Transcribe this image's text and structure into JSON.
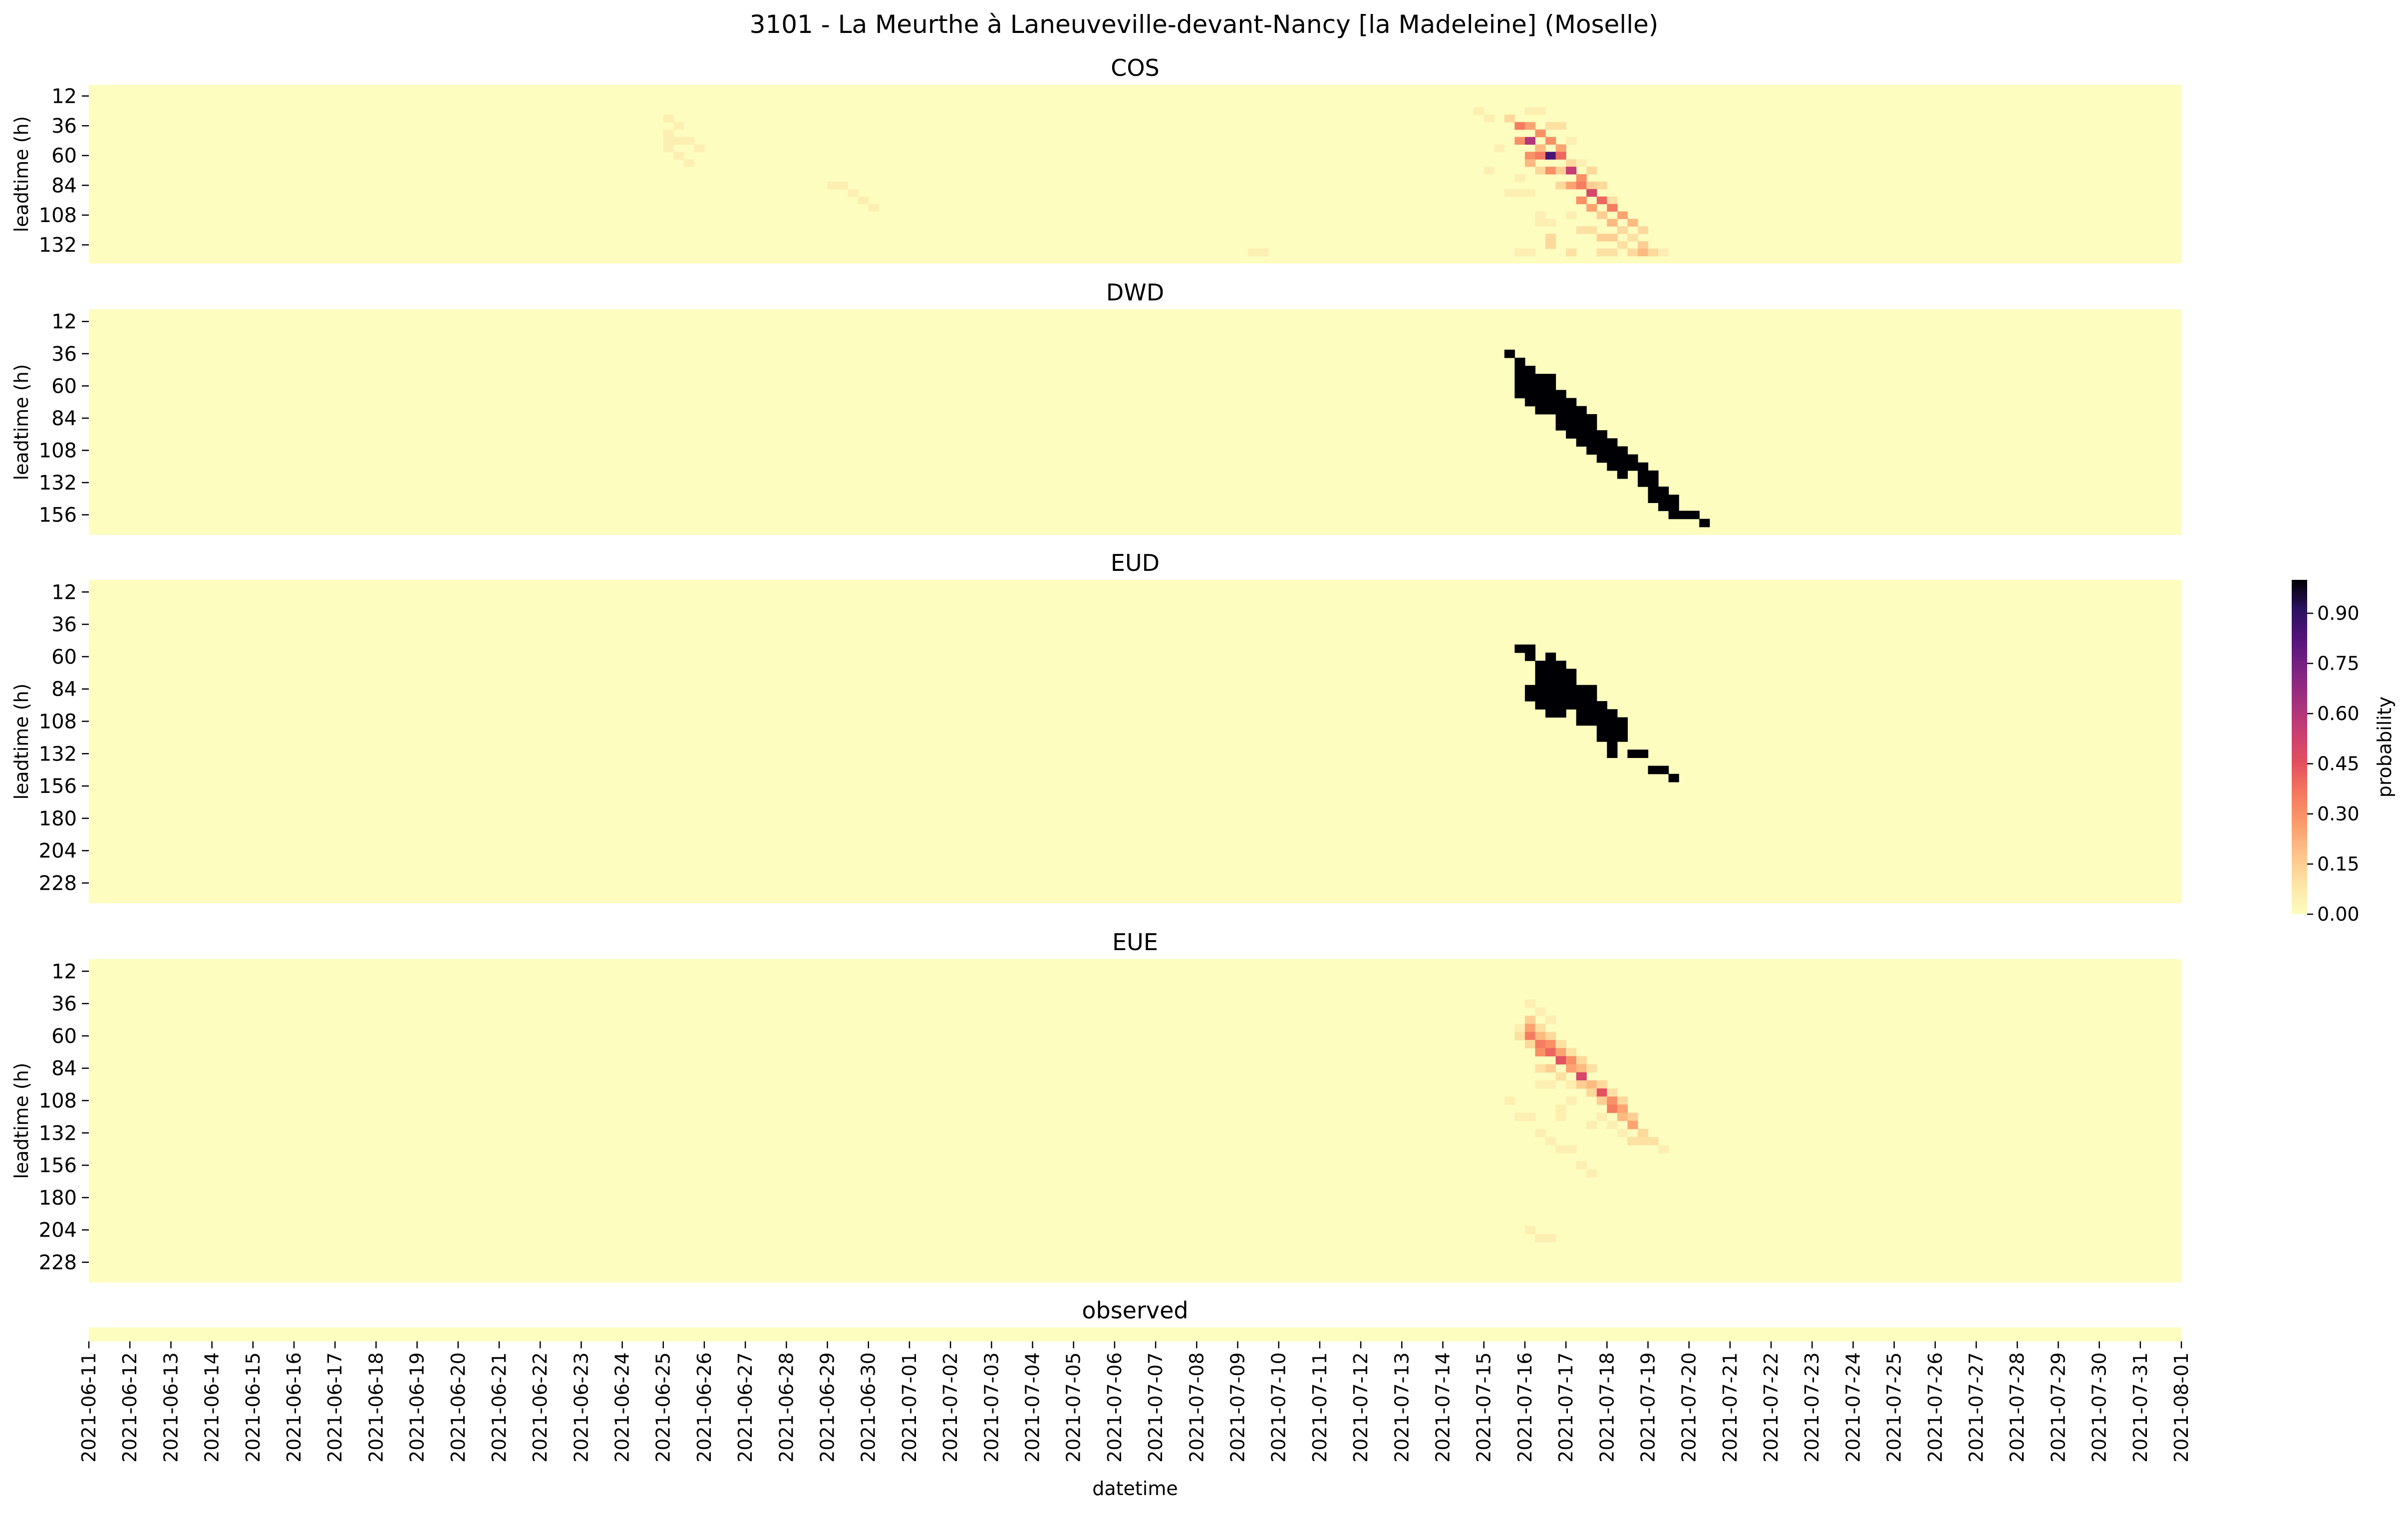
{
  "figure": {
    "title": "3101 - La Meurthe à Laneuveville-devant-Nancy [la Madeleine] (Moselle)",
    "xlabel": "datetime"
  },
  "colors": {
    "low": "#fcfdbf",
    "ramp": [
      "#fcfdbf",
      "#fde4a5",
      "#fec287",
      "#fb9a6a",
      "#f4775e",
      "#e34f5f",
      "#c83e73",
      "#a3307e",
      "#7e2482",
      "#56147d",
      "#2d1160",
      "#000004"
    ]
  },
  "chart_data": [
    {
      "type": "heatmap",
      "title": "COS",
      "ylabel": "leadtime (h)",
      "y": [
        12,
        36,
        60,
        84,
        108,
        132
      ],
      "cell_hours": 6,
      "x_start": "2021-06-11",
      "x_end": "2021-08-01",
      "cells": [
        [
          "2021-06-25T00",
          30,
          0.05
        ],
        [
          "2021-06-25T00",
          42,
          0.05
        ],
        [
          "2021-06-25T00",
          48,
          0.05
        ],
        [
          "2021-06-25T00",
          54,
          0.05
        ],
        [
          "2021-06-25T06",
          36,
          0.05
        ],
        [
          "2021-06-25T06",
          48,
          0.05
        ],
        [
          "2021-06-25T06",
          60,
          0.05
        ],
        [
          "2021-06-25T12",
          48,
          0.05
        ],
        [
          "2021-06-25T12",
          66,
          0.05
        ],
        [
          "2021-06-25T18",
          54,
          0.05
        ],
        [
          "2021-06-29T00",
          84,
          0.05
        ],
        [
          "2021-06-29T06",
          84,
          0.05
        ],
        [
          "2021-06-29T12",
          90,
          0.05
        ],
        [
          "2021-06-29T18",
          96,
          0.05
        ],
        [
          "2021-06-30T00",
          102,
          0.05
        ],
        [
          "2021-07-09T06",
          138,
          0.05
        ],
        [
          "2021-07-09T12",
          138,
          0.05
        ],
        [
          "2021-07-14T18",
          24,
          0.05
        ],
        [
          "2021-07-15T00",
          30,
          0.05
        ],
        [
          "2021-07-15T06",
          54,
          0.05
        ],
        [
          "2021-07-15T00",
          72,
          0.05
        ],
        [
          "2021-07-15T12",
          30,
          0.12
        ],
        [
          "2021-07-15T12",
          90,
          0.05
        ],
        [
          "2021-07-15T18",
          90,
          0.05
        ],
        [
          "2021-07-16T00",
          90,
          0.05
        ],
        [
          "2021-07-15T18",
          78,
          0.05
        ],
        [
          "2021-07-15T18",
          138,
          0.05
        ],
        [
          "2021-07-16T00",
          138,
          0.05
        ],
        [
          "2021-07-15T18",
          36,
          0.35
        ],
        [
          "2021-07-15T18",
          48,
          0.3
        ],
        [
          "2021-07-16T00",
          24,
          0.05
        ],
        [
          "2021-07-16T00",
          36,
          0.25
        ],
        [
          "2021-07-16T00",
          48,
          0.6
        ],
        [
          "2021-07-16T00",
          60,
          0.3
        ],
        [
          "2021-07-16T00",
          66,
          0.2
        ],
        [
          "2021-07-16T06",
          24,
          0.05
        ],
        [
          "2021-07-16T06",
          42,
          0.3
        ],
        [
          "2021-07-16T06",
          54,
          0.2
        ],
        [
          "2021-07-16T06",
          60,
          0.35
        ],
        [
          "2021-07-16T06",
          72,
          0.12
        ],
        [
          "2021-07-16T06",
          108,
          0.05
        ],
        [
          "2021-07-16T06",
          114,
          0.05
        ],
        [
          "2021-07-16T12",
          36,
          0.1
        ],
        [
          "2021-07-16T12",
          48,
          0.3
        ],
        [
          "2021-07-16T12",
          60,
          0.85
        ],
        [
          "2021-07-16T12",
          72,
          0.3
        ],
        [
          "2021-07-16T12",
          126,
          0.12
        ],
        [
          "2021-07-16T12",
          132,
          0.12
        ],
        [
          "2021-07-16T12",
          114,
          0.05
        ],
        [
          "2021-07-16T18",
          36,
          0.1
        ],
        [
          "2021-07-16T18",
          54,
          0.25
        ],
        [
          "2021-07-16T18",
          60,
          0.4
        ],
        [
          "2021-07-16T18",
          72,
          0.15
        ],
        [
          "2021-07-16T18",
          84,
          0.12
        ],
        [
          "2021-07-17T00",
          48,
          0.05
        ],
        [
          "2021-07-17T00",
          66,
          0.12
        ],
        [
          "2021-07-17T00",
          72,
          0.55
        ],
        [
          "2021-07-17T00",
          84,
          0.25
        ],
        [
          "2021-07-17T00",
          108,
          0.05
        ],
        [
          "2021-07-17T00",
          138,
          0.1
        ],
        [
          "2021-07-17T06",
          66,
          0.05
        ],
        [
          "2021-07-17T06",
          78,
          0.3
        ],
        [
          "2021-07-17T06",
          84,
          0.35
        ],
        [
          "2021-07-17T06",
          96,
          0.3
        ],
        [
          "2021-07-17T06",
          120,
          0.1
        ],
        [
          "2021-07-17T12",
          72,
          0.12
        ],
        [
          "2021-07-17T12",
          84,
          0.15
        ],
        [
          "2021-07-17T12",
          90,
          0.5
        ],
        [
          "2021-07-17T12",
          102,
          0.25
        ],
        [
          "2021-07-17T12",
          120,
          0.1
        ],
        [
          "2021-07-17T18",
          84,
          0.12
        ],
        [
          "2021-07-17T18",
          96,
          0.4
        ],
        [
          "2021-07-17T18",
          108,
          0.15
        ],
        [
          "2021-07-17T18",
          126,
          0.15
        ],
        [
          "2021-07-17T18",
          138,
          0.1
        ],
        [
          "2021-07-18T00",
          96,
          0.1
        ],
        [
          "2021-07-18T00",
          102,
          0.35
        ],
        [
          "2021-07-18T00",
          114,
          0.2
        ],
        [
          "2021-07-18T00",
          126,
          0.15
        ],
        [
          "2021-07-18T00",
          138,
          0.1
        ],
        [
          "2021-07-18T06",
          108,
          0.25
        ],
        [
          "2021-07-18T06",
          120,
          0.12
        ],
        [
          "2021-07-18T06",
          132,
          0.1
        ],
        [
          "2021-07-18T12",
          114,
          0.2
        ],
        [
          "2021-07-18T12",
          126,
          0.1
        ],
        [
          "2021-07-18T12",
          138,
          0.12
        ],
        [
          "2021-07-18T18",
          120,
          0.12
        ],
        [
          "2021-07-18T18",
          132,
          0.15
        ],
        [
          "2021-07-18T18",
          138,
          0.2
        ],
        [
          "2021-07-19T00",
          138,
          0.12
        ],
        [
          "2021-07-19T06",
          138,
          0.05
        ]
      ]
    },
    {
      "type": "heatmap",
      "title": "DWD",
      "ylabel": "leadtime (h)",
      "y": [
        12,
        36,
        60,
        84,
        108,
        132,
        156
      ],
      "cell_hours": 6,
      "x_start": "2021-06-11",
      "x_end": "2021-08-01",
      "bands": [
        [
          "2021-07-15T12",
          36,
          42,
          1.0
        ],
        [
          "2021-07-15T18",
          42,
          72,
          1.0
        ],
        [
          "2021-07-16T00",
          48,
          78,
          1.0
        ],
        [
          "2021-07-16T06",
          54,
          84,
          1.0
        ],
        [
          "2021-07-16T12",
          54,
          84,
          1.0
        ],
        [
          "2021-07-16T18",
          66,
          96,
          1.0
        ],
        [
          "2021-07-17T00",
          72,
          102,
          1.0
        ],
        [
          "2021-07-17T06",
          78,
          108,
          1.0
        ],
        [
          "2021-07-17T12",
          84,
          114,
          1.0
        ],
        [
          "2021-07-17T18",
          96,
          120,
          1.0
        ],
        [
          "2021-07-18T00",
          102,
          126,
          1.0
        ],
        [
          "2021-07-18T06",
          108,
          132,
          1.0
        ],
        [
          "2021-07-18T12",
          114,
          126,
          1.0
        ],
        [
          "2021-07-18T18",
          120,
          138,
          1.0
        ],
        [
          "2021-07-19T00",
          126,
          150,
          1.0
        ],
        [
          "2021-07-19T06",
          138,
          156,
          1.0
        ],
        [
          "2021-07-19T12",
          144,
          162,
          1.0
        ],
        [
          "2021-07-19T18",
          156,
          162,
          1.0
        ],
        [
          "2021-07-20T00",
          156,
          162,
          1.0
        ],
        [
          "2021-07-20T06",
          162,
          168,
          1.0
        ]
      ]
    },
    {
      "type": "heatmap",
      "title": "EUD",
      "ylabel": "leadtime (h)",
      "y": [
        12,
        36,
        60,
        84,
        108,
        132,
        156,
        180,
        204,
        228
      ],
      "cell_hours": 6,
      "x_start": "2021-06-11",
      "x_end": "2021-08-01",
      "bands": [
        [
          "2021-07-15T18",
          54,
          60,
          1.0
        ],
        [
          "2021-07-16T00",
          54,
          66,
          1.0
        ],
        [
          "2021-07-16T00",
          84,
          96,
          1.0
        ],
        [
          "2021-07-16T06",
          66,
          102,
          1.0
        ],
        [
          "2021-07-16T12",
          60,
          108,
          1.0
        ],
        [
          "2021-07-16T18",
          66,
          108,
          1.0
        ],
        [
          "2021-07-17T00",
          72,
          102,
          1.0
        ],
        [
          "2021-07-17T06",
          84,
          114,
          1.0
        ],
        [
          "2021-07-17T12",
          84,
          114,
          1.0
        ],
        [
          "2021-07-17T18",
          96,
          126,
          1.0
        ],
        [
          "2021-07-18T00",
          102,
          138,
          1.0
        ],
        [
          "2021-07-18T06",
          108,
          126,
          1.0
        ],
        [
          "2021-07-18T12",
          132,
          138,
          1.0
        ],
        [
          "2021-07-18T18",
          132,
          138,
          1.0
        ],
        [
          "2021-07-19T00",
          144,
          150,
          1.0
        ],
        [
          "2021-07-19T06",
          144,
          150,
          1.0
        ],
        [
          "2021-07-19T12",
          150,
          156,
          1.0
        ]
      ]
    },
    {
      "type": "heatmap",
      "title": "EUE",
      "ylabel": "leadtime (h)",
      "y": [
        12,
        36,
        60,
        84,
        108,
        132,
        156,
        180,
        204,
        228
      ],
      "cell_hours": 6,
      "x_start": "2021-06-11",
      "x_end": "2021-08-01",
      "cells": [
        [
          "2021-07-15T12",
          108,
          0.05
        ],
        [
          "2021-07-15T18",
          54,
          0.05
        ],
        [
          "2021-07-15T18",
          60,
          0.1
        ],
        [
          "2021-07-15T18",
          120,
          0.05
        ],
        [
          "2021-07-16T00",
          36,
          0.05
        ],
        [
          "2021-07-16T00",
          48,
          0.15
        ],
        [
          "2021-07-16T00",
          54,
          0.25
        ],
        [
          "2021-07-16T00",
          60,
          0.35
        ],
        [
          "2021-07-16T00",
          66,
          0.12
        ],
        [
          "2021-07-16T00",
          204,
          0.05
        ],
        [
          "2021-07-16T00",
          120,
          0.05
        ],
        [
          "2021-07-16T06",
          42,
          0.05
        ],
        [
          "2021-07-16T06",
          54,
          0.1
        ],
        [
          "2021-07-16T06",
          60,
          0.2
        ],
        [
          "2021-07-16T06",
          66,
          0.35
        ],
        [
          "2021-07-16T06",
          72,
          0.3
        ],
        [
          "2021-07-16T06",
          84,
          0.1
        ],
        [
          "2021-07-16T06",
          96,
          0.05
        ],
        [
          "2021-07-16T06",
          132,
          0.05
        ],
        [
          "2021-07-16T06",
          210,
          0.05
        ],
        [
          "2021-07-16T12",
          48,
          0.05
        ],
        [
          "2021-07-16T12",
          60,
          0.12
        ],
        [
          "2021-07-16T12",
          66,
          0.3
        ],
        [
          "2021-07-16T12",
          72,
          0.4
        ],
        [
          "2021-07-16T12",
          84,
          0.15
        ],
        [
          "2021-07-16T12",
          96,
          0.05
        ],
        [
          "2021-07-16T12",
          138,
          0.05
        ],
        [
          "2021-07-16T12",
          210,
          0.05
        ],
        [
          "2021-07-16T18",
          66,
          0.1
        ],
        [
          "2021-07-16T18",
          72,
          0.25
        ],
        [
          "2021-07-16T18",
          78,
          0.45
        ],
        [
          "2021-07-16T18",
          90,
          0.1
        ],
        [
          "2021-07-16T18",
          114,
          0.05
        ],
        [
          "2021-07-16T18",
          120,
          0.05
        ],
        [
          "2021-07-16T18",
          144,
          0.05
        ],
        [
          "2021-07-17T00",
          72,
          0.1
        ],
        [
          "2021-07-17T00",
          78,
          0.3
        ],
        [
          "2021-07-17T00",
          84,
          0.25
        ],
        [
          "2021-07-17T00",
          96,
          0.05
        ],
        [
          "2021-07-17T00",
          108,
          0.05
        ],
        [
          "2021-07-17T00",
          144,
          0.05
        ],
        [
          "2021-07-17T06",
          78,
          0.12
        ],
        [
          "2021-07-17T06",
          84,
          0.2
        ],
        [
          "2021-07-17T06",
          90,
          0.5
        ],
        [
          "2021-07-17T06",
          96,
          0.15
        ],
        [
          "2021-07-17T06",
          156,
          0.05
        ],
        [
          "2021-07-17T12",
          84,
          0.1
        ],
        [
          "2021-07-17T12",
          96,
          0.2
        ],
        [
          "2021-07-17T12",
          102,
          0.12
        ],
        [
          "2021-07-17T12",
          126,
          0.05
        ],
        [
          "2021-07-17T12",
          162,
          0.05
        ],
        [
          "2021-07-17T18",
          96,
          0.12
        ],
        [
          "2021-07-17T18",
          102,
          0.45
        ],
        [
          "2021-07-17T18",
          108,
          0.15
        ],
        [
          "2021-07-17T18",
          120,
          0.05
        ],
        [
          "2021-07-18T00",
          102,
          0.1
        ],
        [
          "2021-07-18T00",
          108,
          0.3
        ],
        [
          "2021-07-18T00",
          114,
          0.35
        ],
        [
          "2021-07-18T00",
          126,
          0.05
        ],
        [
          "2021-07-18T06",
          108,
          0.12
        ],
        [
          "2021-07-18T06",
          114,
          0.25
        ],
        [
          "2021-07-18T06",
          120,
          0.2
        ],
        [
          "2021-07-18T06",
          132,
          0.05
        ],
        [
          "2021-07-18T12",
          120,
          0.15
        ],
        [
          "2021-07-18T12",
          126,
          0.25
        ],
        [
          "2021-07-18T12",
          138,
          0.1
        ],
        [
          "2021-07-18T18",
          132,
          0.12
        ],
        [
          "2021-07-18T18",
          138,
          0.1
        ],
        [
          "2021-07-19T00",
          138,
          0.1
        ],
        [
          "2021-07-19T06",
          144,
          0.05
        ]
      ]
    },
    {
      "type": "heatmap",
      "title": "observed",
      "y": [],
      "cell_hours": 6,
      "x_start": "2021-06-11",
      "x_end": "2021-08-01",
      "cells": []
    }
  ],
  "xticks": [
    "2021-06-11",
    "2021-06-12",
    "2021-06-13",
    "2021-06-14",
    "2021-06-15",
    "2021-06-16",
    "2021-06-17",
    "2021-06-18",
    "2021-06-19",
    "2021-06-20",
    "2021-06-21",
    "2021-06-22",
    "2021-06-23",
    "2021-06-24",
    "2021-06-25",
    "2021-06-26",
    "2021-06-27",
    "2021-06-28",
    "2021-06-29",
    "2021-06-30",
    "2021-07-01",
    "2021-07-02",
    "2021-07-03",
    "2021-07-04",
    "2021-07-05",
    "2021-07-06",
    "2021-07-07",
    "2021-07-08",
    "2021-07-09",
    "2021-07-10",
    "2021-07-11",
    "2021-07-12",
    "2021-07-13",
    "2021-07-14",
    "2021-07-15",
    "2021-07-16",
    "2021-07-17",
    "2021-07-18",
    "2021-07-19",
    "2021-07-20",
    "2021-07-21",
    "2021-07-22",
    "2021-07-23",
    "2021-07-24",
    "2021-07-25",
    "2021-07-26",
    "2021-07-27",
    "2021-07-28",
    "2021-07-29",
    "2021-07-30",
    "2021-07-31",
    "2021-08-01"
  ],
  "colorbar": {
    "label": "probability",
    "ticks": [
      "0.00",
      "0.15",
      "0.30",
      "0.45",
      "0.60",
      "0.75",
      "0.90"
    ],
    "tick_values": [
      0,
      0.15,
      0.3,
      0.45,
      0.6,
      0.75,
      0.9
    ]
  }
}
